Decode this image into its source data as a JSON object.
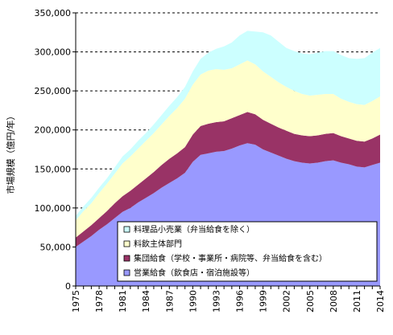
{
  "chart_data": {
    "type": "area",
    "stacked": true,
    "ylabel": "市場規模（億円/年）",
    "xlabel": "",
    "ylim": [
      0,
      350000
    ],
    "y_ticks": [
      "0",
      "50,000",
      "100,000",
      "150,000",
      "200,000",
      "250,000",
      "300,000",
      "350,000"
    ],
    "x_tick_labels": [
      "1975",
      "1978",
      "1981",
      "1984",
      "1987",
      "1990",
      "1993",
      "1996",
      "1999",
      "2002",
      "2005",
      "2008",
      "2011",
      "2014"
    ],
    "x": [
      1975,
      1976,
      1977,
      1978,
      1979,
      1980,
      1981,
      1982,
      1983,
      1984,
      1985,
      1986,
      1987,
      1988,
      1989,
      1990,
      1991,
      1992,
      1993,
      1994,
      1995,
      1996,
      1997,
      1998,
      1999,
      2000,
      2001,
      2002,
      2003,
      2004,
      2005,
      2006,
      2007,
      2008,
      2009,
      2010,
      2011,
      2012,
      2013,
      2014
    ],
    "grid": "horizontal dashed",
    "legend_position": "lower-right inside plot",
    "series": [
      {
        "name": "営業給食（飲食店・宿泊施設等）",
        "color": "#9999ff",
        "values": [
          50000,
          57000,
          64000,
          72000,
          79000,
          87000,
          95000,
          100000,
          107000,
          113000,
          119000,
          126000,
          132000,
          138000,
          145000,
          159000,
          168000,
          170000,
          172000,
          173000,
          176000,
          180000,
          183000,
          181000,
          175000,
          171000,
          167000,
          163000,
          160000,
          158000,
          157000,
          158000,
          160000,
          161000,
          158000,
          156000,
          153000,
          152000,
          155000,
          158000
        ]
      },
      {
        "name": "集団給食（学校・事業所・病院等、弁当給食を含む）",
        "color": "#993366",
        "values": [
          12000,
          13000,
          14000,
          15000,
          17000,
          19000,
          20000,
          22000,
          23000,
          25000,
          27000,
          29000,
          31000,
          32000,
          33000,
          35000,
          37000,
          38000,
          38000,
          38000,
          39000,
          39000,
          40000,
          39000,
          38000,
          37000,
          36000,
          36000,
          35000,
          35000,
          35000,
          35000,
          35000,
          35000,
          34000,
          33000,
          33000,
          33000,
          34000,
          36000
        ]
      },
      {
        "name": "料飲主体部門",
        "color": "#ffffcc",
        "values": [
          22000,
          26000,
          28000,
          32000,
          35000,
          38000,
          42000,
          44000,
          46000,
          48000,
          50000,
          52000,
          55000,
          58000,
          62000,
          64000,
          66000,
          68000,
          68000,
          66000,
          64000,
          65000,
          66000,
          64000,
          62000,
          60000,
          58000,
          56000,
          55000,
          53000,
          52000,
          52000,
          51000,
          50000,
          48000,
          47000,
          47000,
          47000,
          48000,
          49000
        ]
      },
      {
        "name": "料理品小売業（弁当給食を除く）",
        "color": "#ccffff",
        "values": [
          6000,
          6000,
          7000,
          7000,
          7000,
          8000,
          9000,
          9000,
          10000,
          10000,
          11000,
          12000,
          13000,
          14000,
          15000,
          17000,
          20000,
          23000,
          26000,
          30000,
          33000,
          37000,
          38000,
          42000,
          50000,
          53000,
          52000,
          50000,
          51000,
          52000,
          53000,
          54000,
          55000,
          55000,
          56000,
          56000,
          58000,
          60000,
          62000,
          62000
        ]
      }
    ]
  }
}
